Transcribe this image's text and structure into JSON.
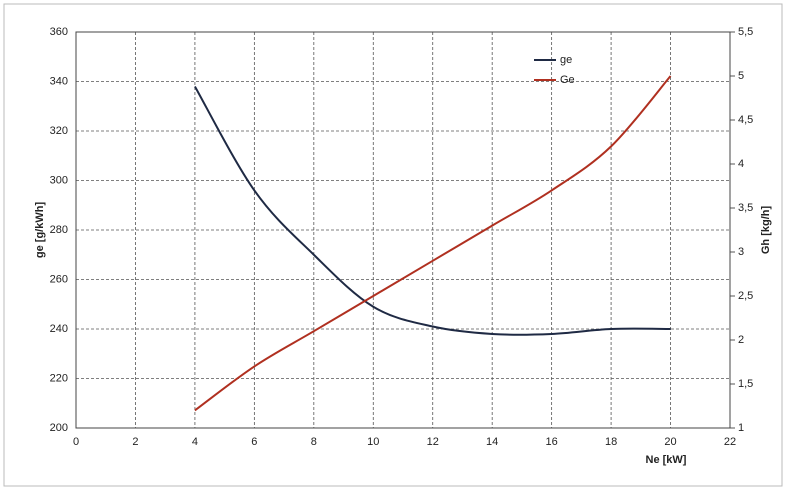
{
  "chart_data": {
    "type": "line",
    "x_label": "Ne [kW]",
    "y_label": "ge [g/kWh]",
    "y2_label": "Gh [kg/h]",
    "x": [
      4,
      6,
      8,
      10,
      12,
      14,
      16,
      18,
      20
    ],
    "series": [
      {
        "name": "ge",
        "color": "#1f2a44",
        "values": [
          338,
          296,
          270,
          249,
          241,
          238,
          238,
          240,
          240
        ]
      },
      {
        "name": "Ge",
        "color": "#b03020",
        "axis": "y2",
        "values": [
          1.2,
          1.7,
          2.1,
          2.5,
          2.9,
          3.3,
          3.7,
          4.2,
          5.0
        ]
      }
    ],
    "xlim": [
      0,
      22
    ],
    "xticks": [
      0,
      2,
      4,
      6,
      8,
      10,
      12,
      14,
      16,
      18,
      20,
      22
    ],
    "ylim": [
      200,
      360
    ],
    "yticks": [
      200,
      220,
      240,
      260,
      280,
      300,
      320,
      340,
      360
    ],
    "y2lim": [
      1,
      5.5
    ],
    "y2ticks": [
      1,
      {
        "value": 1.5,
        "label": "1,5"
      },
      2,
      {
        "value": 2.5,
        "label": "2,5"
      },
      3,
      {
        "value": 3.5,
        "label": "3,5"
      },
      4,
      {
        "value": 4.5,
        "label": "4,5"
      },
      5,
      {
        "value": 5.5,
        "label": "5,5"
      }
    ],
    "grid": true,
    "legend": "top-right"
  }
}
